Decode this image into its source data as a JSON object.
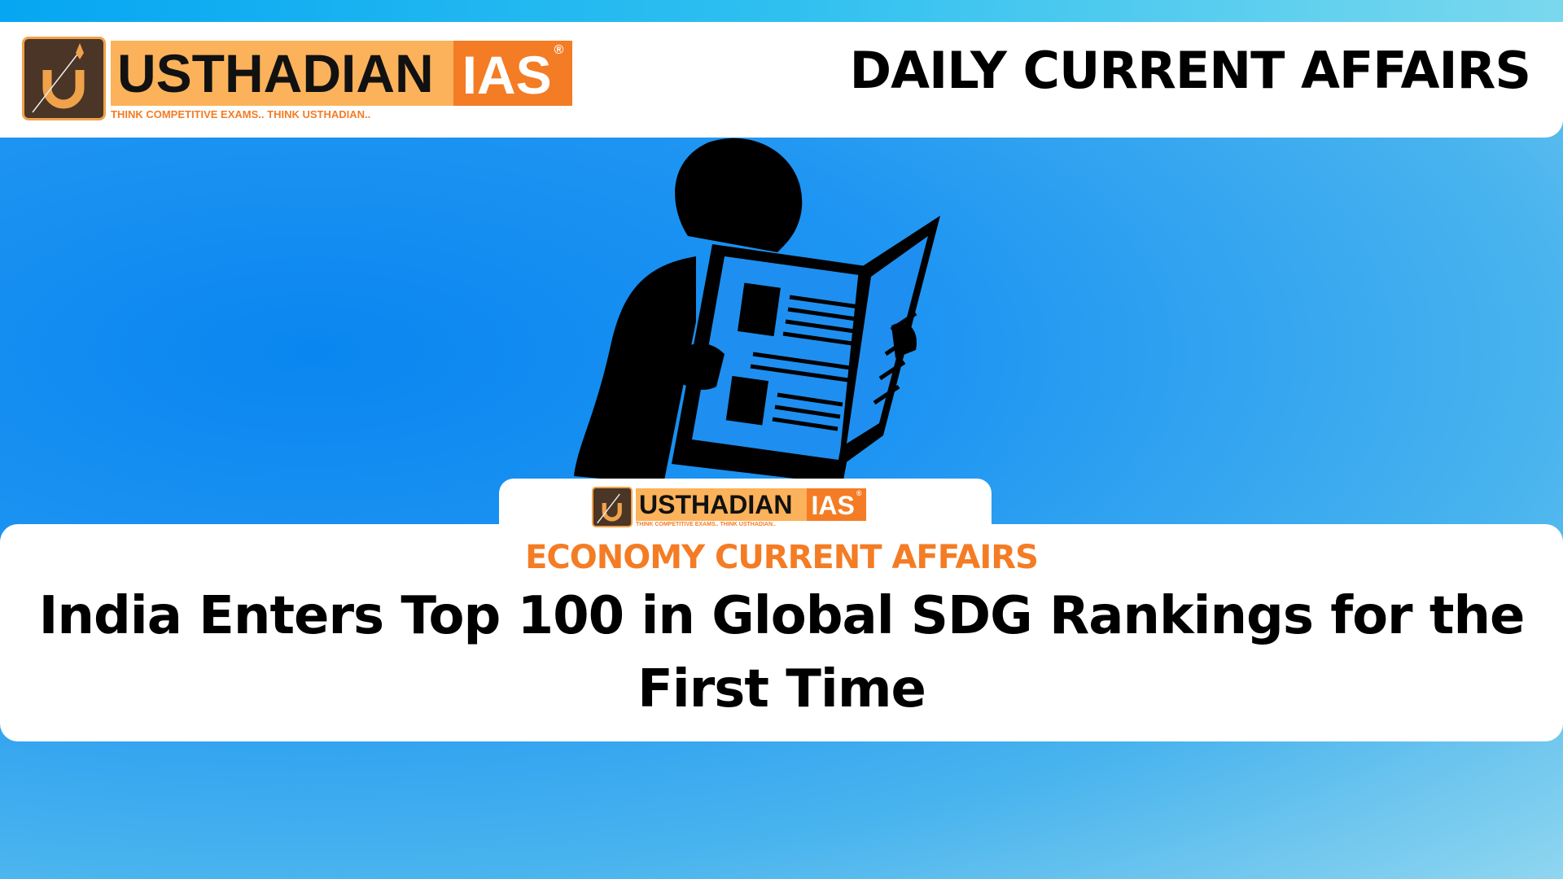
{
  "header": {
    "brand_name": "USTHADIAN",
    "brand_suffix": "IAS",
    "registered": "®",
    "tagline": "THINK COMPETITIVE EXAMS.. THINK USTHADIAN..",
    "heading": "DAILY CURRENT AFFAIRS"
  },
  "article": {
    "category": "ECONOMY CURRENT AFFAIRS",
    "title": "India Enters Top 100 in Global SDG Rankings for the First Time"
  },
  "illustration": {
    "icon": "person-reading-newspaper-icon"
  },
  "colors": {
    "brand_orange": "#f47c24",
    "brand_light_orange": "#fbb25a",
    "logo_brown": "#4a3526",
    "background_blue": "#1e95f2"
  }
}
